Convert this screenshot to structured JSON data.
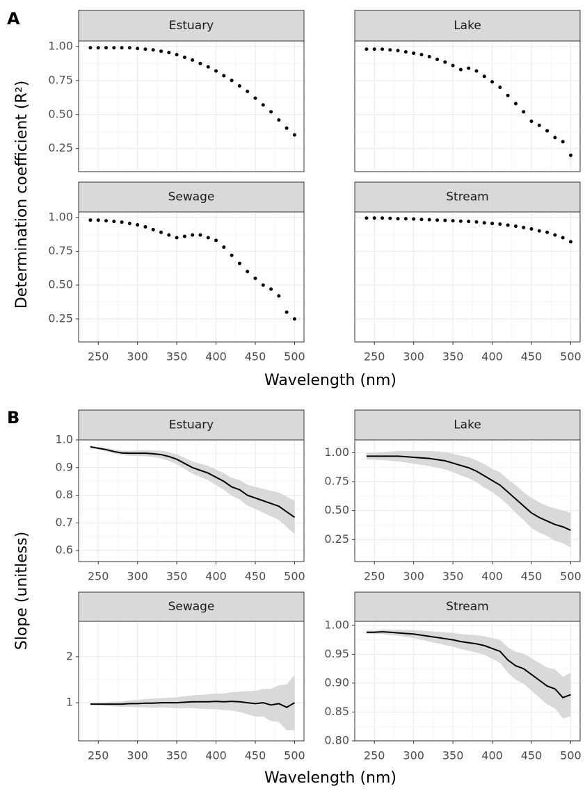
{
  "labels": {
    "panel_a": "A",
    "panel_b": "B",
    "a_y_label": "Determination coefficient (R²)",
    "a_x_label": "Wavelength (nm)",
    "b_y_label": "Slope (unitless)",
    "b_x_label": "Wavelength (nm)"
  },
  "chart_data": [
    {
      "type": "scatter",
      "title": "Estuary",
      "color": "#000000",
      "show_xtick_labels": false,
      "show_ytick_labels": true,
      "x": [
        240,
        250,
        260,
        270,
        280,
        290,
        300,
        310,
        320,
        330,
        340,
        350,
        360,
        370,
        380,
        390,
        400,
        410,
        420,
        430,
        440,
        450,
        460,
        470,
        480,
        490,
        500
      ],
      "values": [
        0.99,
        0.99,
        0.99,
        0.99,
        0.99,
        0.99,
        0.985,
        0.98,
        0.975,
        0.965,
        0.955,
        0.94,
        0.92,
        0.9,
        0.875,
        0.85,
        0.82,
        0.785,
        0.75,
        0.71,
        0.67,
        0.62,
        0.57,
        0.52,
        0.46,
        0.4,
        0.35
      ],
      "xlim": [
        225,
        512
      ],
      "ylim": [
        0.08,
        1.04
      ],
      "xticks": [
        250,
        300,
        350,
        400,
        450,
        500
      ],
      "yticks": [
        {
          "value": 0.25,
          "label": "0.25"
        },
        {
          "value": 0.5,
          "label": "0.50"
        },
        {
          "value": 0.75,
          "label": "0.75"
        },
        {
          "value": 1,
          "label": "1.00"
        }
      ]
    },
    {
      "type": "scatter",
      "title": "Lake",
      "color": "#000000",
      "show_xtick_labels": false,
      "show_ytick_labels": false,
      "x": [
        240,
        250,
        260,
        270,
        280,
        290,
        300,
        310,
        320,
        330,
        340,
        350,
        360,
        370,
        380,
        390,
        400,
        410,
        420,
        430,
        440,
        450,
        460,
        470,
        480,
        490,
        500
      ],
      "values": [
        0.98,
        0.98,
        0.98,
        0.975,
        0.97,
        0.96,
        0.95,
        0.94,
        0.925,
        0.905,
        0.885,
        0.86,
        0.83,
        0.84,
        0.82,
        0.78,
        0.74,
        0.7,
        0.64,
        0.58,
        0.52,
        0.45,
        0.42,
        0.38,
        0.33,
        0.3,
        0.2
      ],
      "xlim": [
        225,
        512
      ],
      "ylim": [
        0.08,
        1.04
      ],
      "xticks": [
        250,
        300,
        350,
        400,
        450,
        500
      ],
      "yticks": [
        {
          "value": 0.25,
          "label": "0.25"
        },
        {
          "value": 0.5,
          "label": "0.50"
        },
        {
          "value": 0.75,
          "label": "0.75"
        },
        {
          "value": 1,
          "label": "1.00"
        }
      ]
    },
    {
      "type": "scatter",
      "title": "Sewage",
      "color": "#000000",
      "show_xtick_labels": true,
      "show_ytick_labels": true,
      "x": [
        240,
        250,
        260,
        270,
        280,
        290,
        300,
        310,
        320,
        330,
        340,
        350,
        360,
        370,
        380,
        390,
        400,
        410,
        420,
        430,
        440,
        450,
        460,
        470,
        480,
        490,
        500
      ],
      "values": [
        0.98,
        0.98,
        0.975,
        0.97,
        0.965,
        0.955,
        0.945,
        0.93,
        0.91,
        0.89,
        0.87,
        0.85,
        0.86,
        0.87,
        0.87,
        0.85,
        0.83,
        0.78,
        0.72,
        0.66,
        0.6,
        0.55,
        0.5,
        0.47,
        0.42,
        0.3,
        0.25
      ],
      "xlim": [
        225,
        512
      ],
      "ylim": [
        0.08,
        1.04
      ],
      "xticks": [
        250,
        300,
        350,
        400,
        450,
        500
      ],
      "yticks": [
        {
          "value": 0.25,
          "label": "0.25"
        },
        {
          "value": 0.5,
          "label": "0.50"
        },
        {
          "value": 0.75,
          "label": "0.75"
        },
        {
          "value": 1,
          "label": "1.00"
        }
      ]
    },
    {
      "type": "scatter",
      "title": "Stream",
      "color": "#000000",
      "show_xtick_labels": true,
      "show_ytick_labels": false,
      "x": [
        240,
        250,
        260,
        270,
        280,
        290,
        300,
        310,
        320,
        330,
        340,
        350,
        360,
        370,
        380,
        390,
        400,
        410,
        420,
        430,
        440,
        450,
        460,
        470,
        480,
        490,
        500
      ],
      "values": [
        0.995,
        0.995,
        0.995,
        0.993,
        0.99,
        0.99,
        0.988,
        0.985,
        0.983,
        0.98,
        0.978,
        0.975,
        0.972,
        0.97,
        0.966,
        0.96,
        0.955,
        0.95,
        0.943,
        0.935,
        0.925,
        0.915,
        0.9,
        0.89,
        0.87,
        0.85,
        0.82
      ],
      "xlim": [
        225,
        512
      ],
      "ylim": [
        0.08,
        1.04
      ],
      "xticks": [
        250,
        300,
        350,
        400,
        450,
        500
      ],
      "yticks": [
        {
          "value": 0.25,
          "label": "0.25"
        },
        {
          "value": 0.5,
          "label": "0.50"
        },
        {
          "value": 0.75,
          "label": "0.75"
        },
        {
          "value": 1,
          "label": "1.00"
        }
      ]
    },
    {
      "type": "line",
      "title": "Estuary",
      "color": "#000000",
      "band_color": "#d9d9d9",
      "show_xtick_labels": true,
      "show_ytick_labels": true,
      "x": [
        240,
        250,
        260,
        270,
        280,
        290,
        300,
        310,
        320,
        330,
        340,
        350,
        360,
        370,
        380,
        390,
        400,
        410,
        420,
        430,
        440,
        450,
        460,
        470,
        480,
        490,
        500
      ],
      "values": [
        0.975,
        0.97,
        0.965,
        0.958,
        0.953,
        0.952,
        0.952,
        0.952,
        0.95,
        0.947,
        0.94,
        0.93,
        0.915,
        0.9,
        0.89,
        0.88,
        0.865,
        0.85,
        0.83,
        0.82,
        0.8,
        0.79,
        0.78,
        0.77,
        0.76,
        0.74,
        0.72
      ],
      "errors": [
        0.005,
        0.005,
        0.006,
        0.007,
        0.008,
        0.009,
        0.01,
        0.011,
        0.012,
        0.014,
        0.016,
        0.018,
        0.02,
        0.022,
        0.024,
        0.026,
        0.028,
        0.03,
        0.032,
        0.035,
        0.038,
        0.04,
        0.043,
        0.046,
        0.05,
        0.055,
        0.06
      ],
      "xlim": [
        225,
        512
      ],
      "ylim": [
        0.56,
        1.0
      ],
      "xticks": [
        250,
        300,
        350,
        400,
        450,
        500
      ],
      "yticks": [
        0.6,
        0.7,
        0.8,
        0.9,
        {
          "value": 1,
          "label": "1.0"
        }
      ]
    },
    {
      "type": "line",
      "title": "Lake",
      "color": "#000000",
      "band_color": "#d9d9d9",
      "show_xtick_labels": true,
      "show_ytick_labels": true,
      "x": [
        240,
        250,
        260,
        270,
        280,
        290,
        300,
        310,
        320,
        330,
        340,
        350,
        360,
        370,
        380,
        390,
        400,
        410,
        420,
        430,
        440,
        450,
        460,
        470,
        480,
        490,
        500
      ],
      "values": [
        0.97,
        0.97,
        0.97,
        0.97,
        0.97,
        0.965,
        0.96,
        0.955,
        0.95,
        0.94,
        0.93,
        0.91,
        0.89,
        0.87,
        0.84,
        0.8,
        0.76,
        0.72,
        0.66,
        0.6,
        0.54,
        0.48,
        0.44,
        0.41,
        0.38,
        0.36,
        0.33
      ],
      "errors": [
        0.03,
        0.03,
        0.035,
        0.04,
        0.045,
        0.05,
        0.055,
        0.06,
        0.065,
        0.07,
        0.075,
        0.08,
        0.085,
        0.09,
        0.095,
        0.1,
        0.1,
        0.11,
        0.11,
        0.12,
        0.12,
        0.13,
        0.13,
        0.13,
        0.14,
        0.14,
        0.15
      ],
      "xlim": [
        225,
        512
      ],
      "ylim": [
        0.06,
        1.11
      ],
      "xticks": [
        250,
        300,
        350,
        400,
        450,
        500
      ],
      "yticks": [
        {
          "value": 0.25,
          "label": "0.25"
        },
        {
          "value": 0.5,
          "label": "0.50"
        },
        {
          "value": 0.75,
          "label": "0.75"
        },
        {
          "value": 1,
          "label": "1.00"
        }
      ]
    },
    {
      "type": "line",
      "title": "Sewage",
      "color": "#000000",
      "band_color": "#d9d9d9",
      "show_xtick_labels": true,
      "show_ytick_labels": true,
      "x": [
        240,
        250,
        260,
        270,
        280,
        290,
        300,
        310,
        320,
        330,
        340,
        350,
        360,
        370,
        380,
        390,
        400,
        410,
        420,
        430,
        440,
        450,
        460,
        470,
        480,
        490,
        500
      ],
      "values": [
        0.97,
        0.97,
        0.97,
        0.97,
        0.97,
        0.98,
        0.98,
        0.99,
        0.99,
        1.0,
        1.0,
        1.0,
        1.01,
        1.02,
        1.02,
        1.02,
        1.03,
        1.02,
        1.03,
        1.02,
        1.0,
        0.98,
        1.0,
        0.95,
        0.98,
        0.9,
        1.0
      ],
      "errors": [
        0.02,
        0.03,
        0.04,
        0.05,
        0.06,
        0.07,
        0.08,
        0.09,
        0.1,
        0.1,
        0.11,
        0.12,
        0.13,
        0.14,
        0.15,
        0.16,
        0.17,
        0.18,
        0.2,
        0.22,
        0.25,
        0.28,
        0.3,
        0.35,
        0.4,
        0.5,
        0.6
      ],
      "xlim": [
        225,
        512
      ],
      "ylim": [
        0.17,
        2.77
      ],
      "xticks": [
        250,
        300,
        350,
        400,
        450,
        500
      ],
      "yticks": [
        1,
        2
      ]
    },
    {
      "type": "line",
      "title": "Stream",
      "color": "#000000",
      "band_color": "#d9d9d9",
      "show_xtick_labels": true,
      "show_ytick_labels": true,
      "x": [
        240,
        250,
        260,
        270,
        280,
        290,
        300,
        310,
        320,
        330,
        340,
        350,
        360,
        370,
        380,
        390,
        400,
        410,
        420,
        430,
        440,
        450,
        460,
        470,
        480,
        490,
        500
      ],
      "values": [
        0.988,
        0.988,
        0.989,
        0.988,
        0.987,
        0.986,
        0.985,
        0.983,
        0.981,
        0.979,
        0.977,
        0.975,
        0.972,
        0.97,
        0.968,
        0.965,
        0.96,
        0.955,
        0.94,
        0.93,
        0.925,
        0.915,
        0.905,
        0.895,
        0.89,
        0.875,
        0.88
      ],
      "errors": [
        0.003,
        0.003,
        0.004,
        0.005,
        0.005,
        0.006,
        0.007,
        0.008,
        0.009,
        0.01,
        0.011,
        0.012,
        0.013,
        0.014,
        0.015,
        0.016,
        0.018,
        0.02,
        0.022,
        0.024,
        0.026,
        0.028,
        0.03,
        0.032,
        0.034,
        0.036,
        0.038
      ],
      "xlim": [
        225,
        512
      ],
      "ylim": [
        0.8,
        1.007
      ],
      "xticks": [
        250,
        300,
        350,
        400,
        450,
        500
      ],
      "yticks": [
        {
          "value": 0.8,
          "label": "0.80"
        },
        0.85,
        {
          "value": 0.9,
          "label": "0.90"
        },
        0.95,
        {
          "value": 1,
          "label": "1.00"
        }
      ]
    }
  ]
}
